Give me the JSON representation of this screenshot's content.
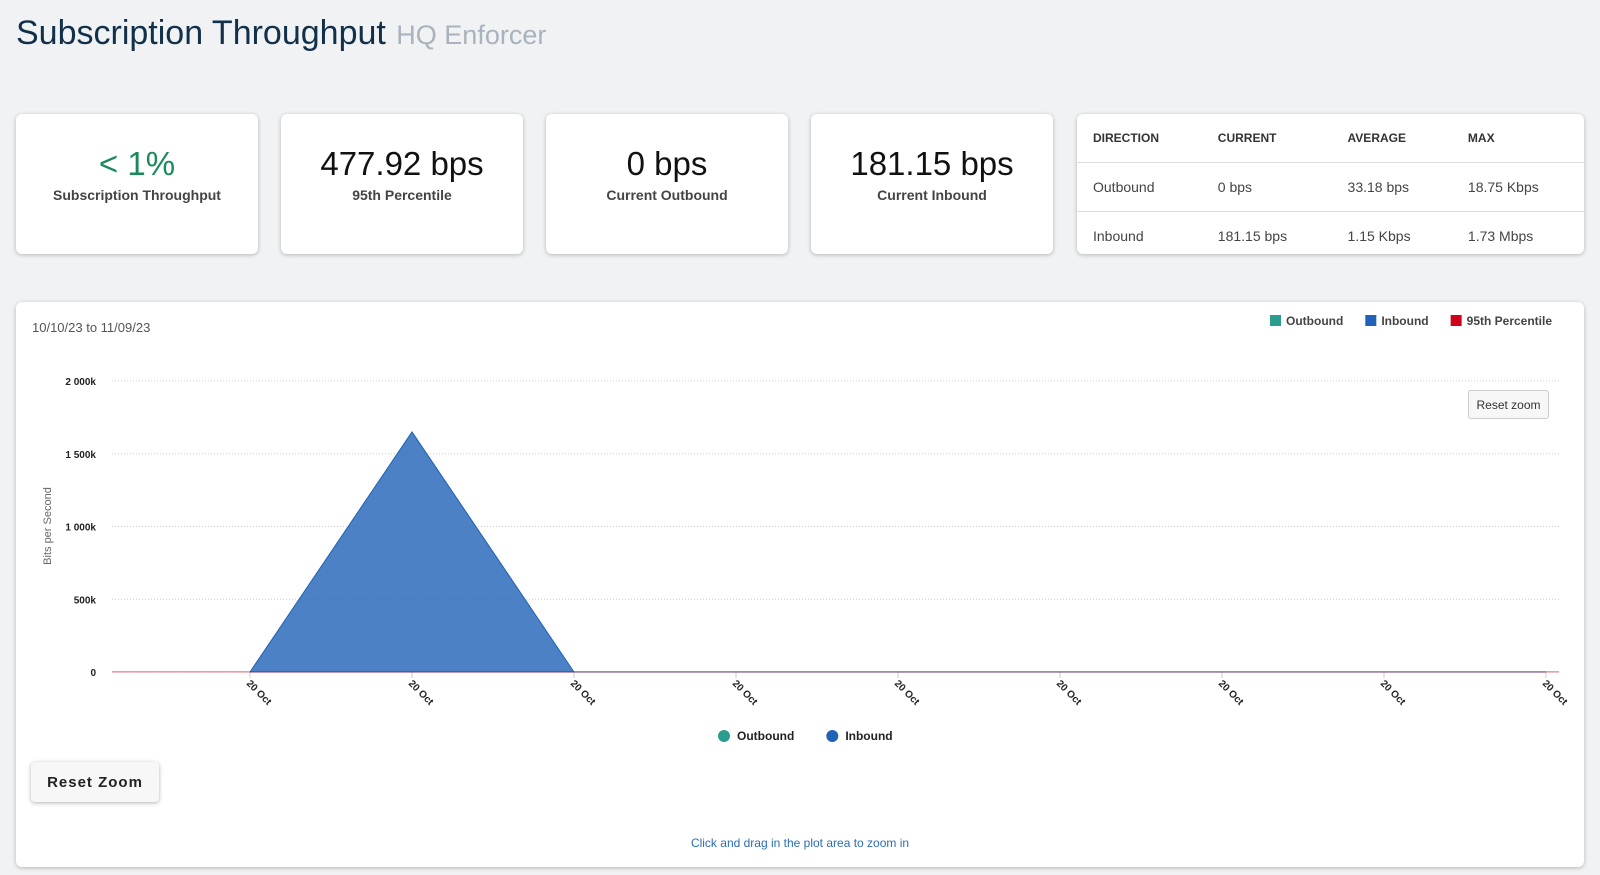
{
  "header": {
    "title": "Subscription Throughput",
    "subtitle": "HQ Enforcer"
  },
  "cards": [
    {
      "value": "< 1%",
      "label": "Subscription Throughput"
    },
    {
      "value": "477.92 bps",
      "label": "95th Percentile"
    },
    {
      "value": "0 bps",
      "label": "Current Outbound"
    },
    {
      "value": "181.15 bps",
      "label": "Current Inbound"
    }
  ],
  "table": {
    "columns": [
      "DIRECTION",
      "CURRENT",
      "AVERAGE",
      "MAX"
    ],
    "rows": [
      [
        "Outbound",
        "0 bps",
        "33.18 bps",
        "18.75 Kbps"
      ],
      [
        "Inbound",
        "181.15 bps",
        "1.15 Kbps",
        "1.73 Mbps"
      ]
    ]
  },
  "chart_data": {
    "type": "area",
    "date_range": "10/10/23 to 11/09/23",
    "ylabel": "Bits per Second",
    "categories": [
      "20 Oct",
      "20 Oct",
      "20 Oct",
      "20 Oct",
      "20 Oct",
      "20 Oct",
      "20 Oct",
      "20 Oct",
      "20 Oct"
    ],
    "series": [
      {
        "name": "Outbound",
        "color": "#2a9d8f",
        "values": [
          0,
          0,
          0,
          0,
          0,
          0,
          0,
          0,
          0
        ]
      },
      {
        "name": "Inbound",
        "color": "#1f62b8",
        "values": [
          0,
          1650000,
          0,
          0,
          0,
          0,
          0,
          0,
          0
        ]
      }
    ],
    "percentile_line": {
      "name": "95th Percentile",
      "color": "#d0021b",
      "value": 477.92
    },
    "ylim": [
      0,
      2000000
    ],
    "yticks": [
      {
        "value": 0,
        "label": "0"
      },
      {
        "value": 500000,
        "label": "500k"
      },
      {
        "value": 1000000,
        "label": "1 000k"
      },
      {
        "value": 1500000,
        "label": "1 500k"
      },
      {
        "value": 2000000,
        "label": "2 000k"
      }
    ],
    "grid": true
  },
  "buttons": {
    "reset_zoom_chart": "Reset zoom",
    "reset_zoom": "Reset Zoom"
  },
  "hint": "Click and drag in the plot area to zoom in"
}
